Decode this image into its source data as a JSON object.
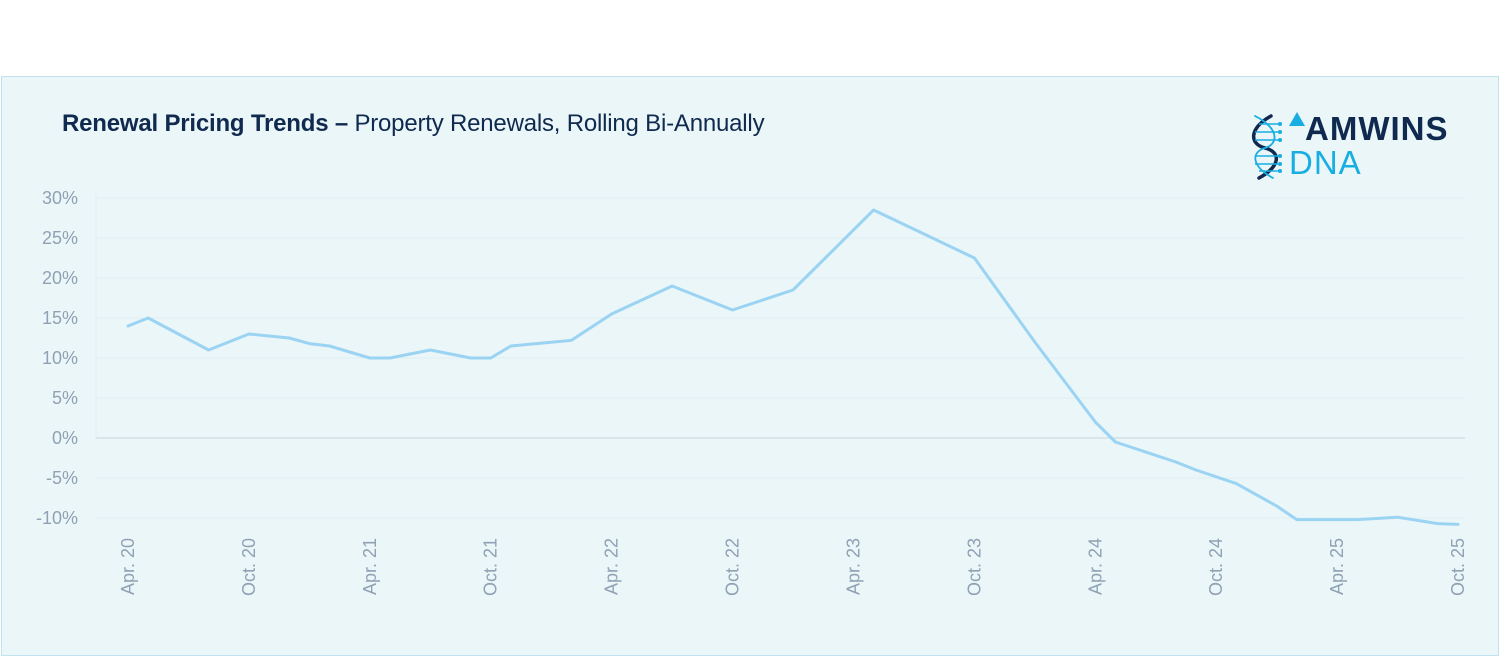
{
  "header": {
    "title_bold": "Renewal Pricing Trends –",
    "title_rest": "Property Renewals, Rolling Bi-Annually"
  },
  "logo": {
    "word1": "AMWINS",
    "word2": "DNA",
    "icon": "dna-helix-icon"
  },
  "colors": {
    "line": "#9bd4f2",
    "panel_bg": "#ebf6f9",
    "title": "#0f2a4e",
    "accent": "#18aee2",
    "tick": "#8fa2b4"
  },
  "chart_data": {
    "type": "line",
    "title": "Renewal Pricing Trends – Property Renewals, Rolling Bi-Annually",
    "xlabel": "",
    "ylabel": "",
    "ylim": [
      -10,
      30
    ],
    "xlim": [
      "2020-04",
      "2025-10"
    ],
    "yticks": [
      30,
      25,
      20,
      15,
      10,
      5,
      0,
      -5,
      -10
    ],
    "ytick_labels": [
      "30%",
      "25%",
      "20%",
      "15%",
      "10%",
      "5%",
      "0%",
      "-5%",
      "-10%"
    ],
    "xtick_labels": [
      "Apr. 20",
      "Oct. 20",
      "Apr. 21",
      "Oct. 21",
      "Apr. 22",
      "Oct. 22",
      "Apr. 23",
      "Oct. 23",
      "Apr. 24",
      "Oct. 24",
      "Apr. 25",
      "Oct. 25"
    ],
    "grid": true,
    "legend": "none",
    "series": [
      {
        "x": [
          "2020-04",
          "2020-05",
          "2020-08",
          "2020-10",
          "2020-12",
          "2021-01",
          "2021-02",
          "2021-04",
          "2021-05",
          "2021-07",
          "2021-09",
          "2021-10",
          "2021-11",
          "2022-02",
          "2022-04",
          "2022-07",
          "2022-10",
          "2023-01",
          "2023-02",
          "2023-05",
          "2023-10",
          "2024-01",
          "2024-04",
          "2024-05",
          "2024-08",
          "2024-09",
          "2024-11",
          "2025-01",
          "2025-02",
          "2025-04",
          "2025-05",
          "2025-07",
          "2025-09",
          "2025-10"
        ],
        "y": [
          14,
          15,
          11,
          13,
          12.5,
          11.8,
          11.5,
          10,
          10,
          11,
          10,
          10,
          11.5,
          12.2,
          15.5,
          19,
          16,
          18.5,
          21,
          28.5,
          22.5,
          12,
          2,
          -0.5,
          -3,
          -4,
          -5.7,
          -8.5,
          -10.2,
          -10.2,
          -10.2,
          -9.9,
          -10.7,
          -10.8
        ]
      }
    ]
  }
}
